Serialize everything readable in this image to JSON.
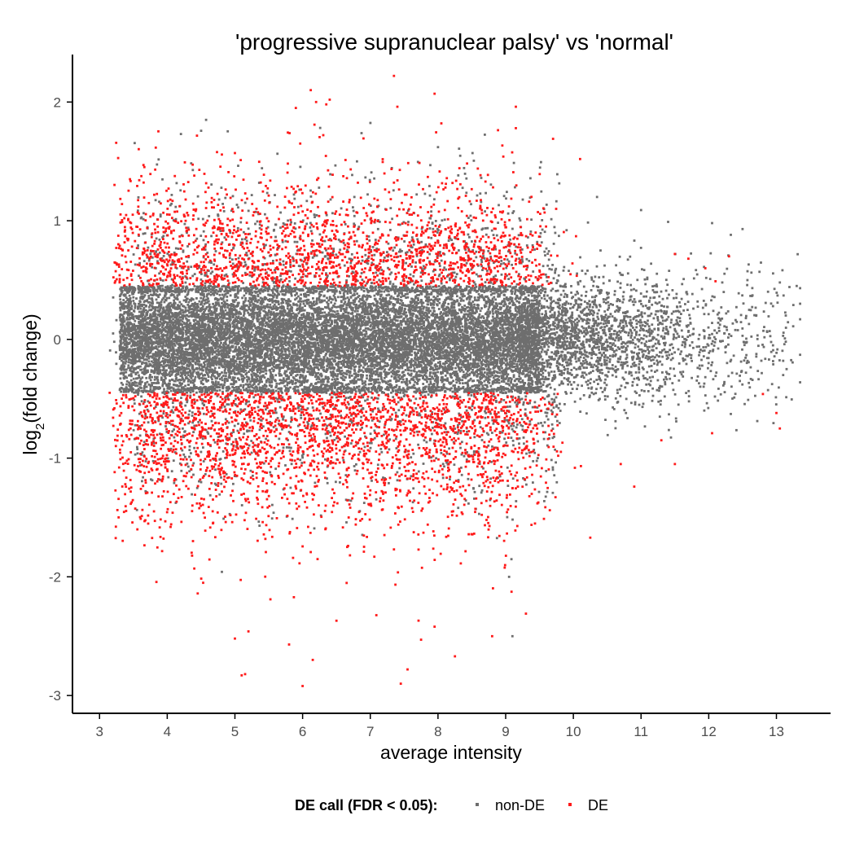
{
  "colors": {
    "non_de": "#6e6e6e",
    "de": "#ff1a1a",
    "axis": "#000000",
    "tick_text": "#4d4d4d"
  },
  "chart_data": {
    "type": "scatter",
    "title": "'progressive supranuclear palsy' vs 'normal'",
    "xlabel": "average intensity",
    "ylabel_prefix": "log",
    "ylabel_sub": "2",
    "ylabel_suffix": "(fold change)",
    "xlim": [
      2.6,
      13.8
    ],
    "ylim": [
      -3.15,
      2.4
    ],
    "x_ticks": [
      3,
      4,
      5,
      6,
      7,
      8,
      9,
      10,
      11,
      12,
      13
    ],
    "y_ticks": [
      -3,
      -2,
      -1,
      0,
      1,
      2
    ],
    "grid": false,
    "legend_position": "bottom",
    "legend_title": "DE call (FDR < 0.05):",
    "series": [
      {
        "name": "non-DE",
        "color": "#6e6e6e",
        "point_count_estimate": 17000
      },
      {
        "name": "DE",
        "color": "#ff1a1a",
        "point_count_estimate": 4500
      }
    ],
    "de_threshold_abs_log2fc_approx": 0.45,
    "highlighted_points": {
      "de": [
        [
          7.35,
          2.22
        ],
        [
          6.12,
          2.1
        ],
        [
          7.95,
          2.07
        ],
        [
          6.4,
          2.02
        ],
        [
          6.2,
          2.0
        ],
        [
          6.35,
          1.98
        ],
        [
          7.4,
          1.96
        ],
        [
          5.9,
          1.95
        ],
        [
          9.15,
          1.96
        ],
        [
          9.15,
          1.78
        ],
        [
          8.05,
          1.82
        ],
        [
          9.7,
          1.69
        ],
        [
          10.1,
          1.52
        ],
        [
          3.38,
          0.87
        ],
        [
          4.4,
          1.38
        ],
        [
          5.0,
          1.57
        ],
        [
          12.3,
          0.7
        ],
        [
          11.7,
          0.68
        ],
        [
          12.1,
          0.49
        ],
        [
          11.5,
          0.72
        ],
        [
          11.95,
          0.6
        ],
        [
          3.15,
          -0.45
        ],
        [
          3.22,
          -0.58
        ],
        [
          4.05,
          -1.58
        ],
        [
          4.45,
          -2.14
        ],
        [
          4.4,
          -1.93
        ],
        [
          5.0,
          -2.52
        ],
        [
          5.1,
          -2.83
        ],
        [
          5.15,
          -2.82
        ],
        [
          5.2,
          -2.46
        ],
        [
          6.0,
          -2.92
        ],
        [
          7.45,
          -2.9
        ],
        [
          7.55,
          -2.78
        ],
        [
          8.25,
          -2.67
        ],
        [
          7.75,
          -2.53
        ],
        [
          7.95,
          -2.42
        ],
        [
          8.8,
          -2.5
        ],
        [
          9.3,
          -2.31
        ],
        [
          6.15,
          -2.7
        ],
        [
          5.8,
          -2.57
        ],
        [
          6.5,
          -2.37
        ],
        [
          10.25,
          -1.67
        ],
        [
          10.9,
          -1.24
        ],
        [
          11.5,
          -1.05
        ],
        [
          12.05,
          -0.79
        ],
        [
          12.8,
          -0.46
        ],
        [
          13.05,
          -0.75
        ],
        [
          13.0,
          -0.62
        ],
        [
          10.7,
          -1.05
        ],
        [
          11.3,
          -0.85
        ]
      ],
      "non_de": [
        [
          11.0,
          1.09
        ],
        [
          11.4,
          0.99
        ],
        [
          12.05,
          0.98
        ],
        [
          12.5,
          0.93
        ],
        [
          12.75,
          0.57
        ],
        [
          13.05,
          0.48
        ],
        [
          13.3,
          0.45
        ],
        [
          13.25,
          0.29
        ],
        [
          12.95,
          0.28
        ],
        [
          12.7,
          0.2
        ],
        [
          13.1,
          -0.18
        ],
        [
          13.1,
          -0.3
        ],
        [
          13.15,
          -0.25
        ],
        [
          12.55,
          -0.28
        ],
        [
          12.95,
          -0.05
        ],
        [
          12.9,
          0.07
        ],
        [
          12.2,
          0.48
        ],
        [
          9.9,
          0.92
        ],
        [
          10.35,
          1.2
        ],
        [
          8.0,
          1.62
        ],
        [
          9.1,
          -2.5
        ],
        [
          9.05,
          -2.0
        ],
        [
          3.2,
          0.05
        ]
      ]
    }
  }
}
